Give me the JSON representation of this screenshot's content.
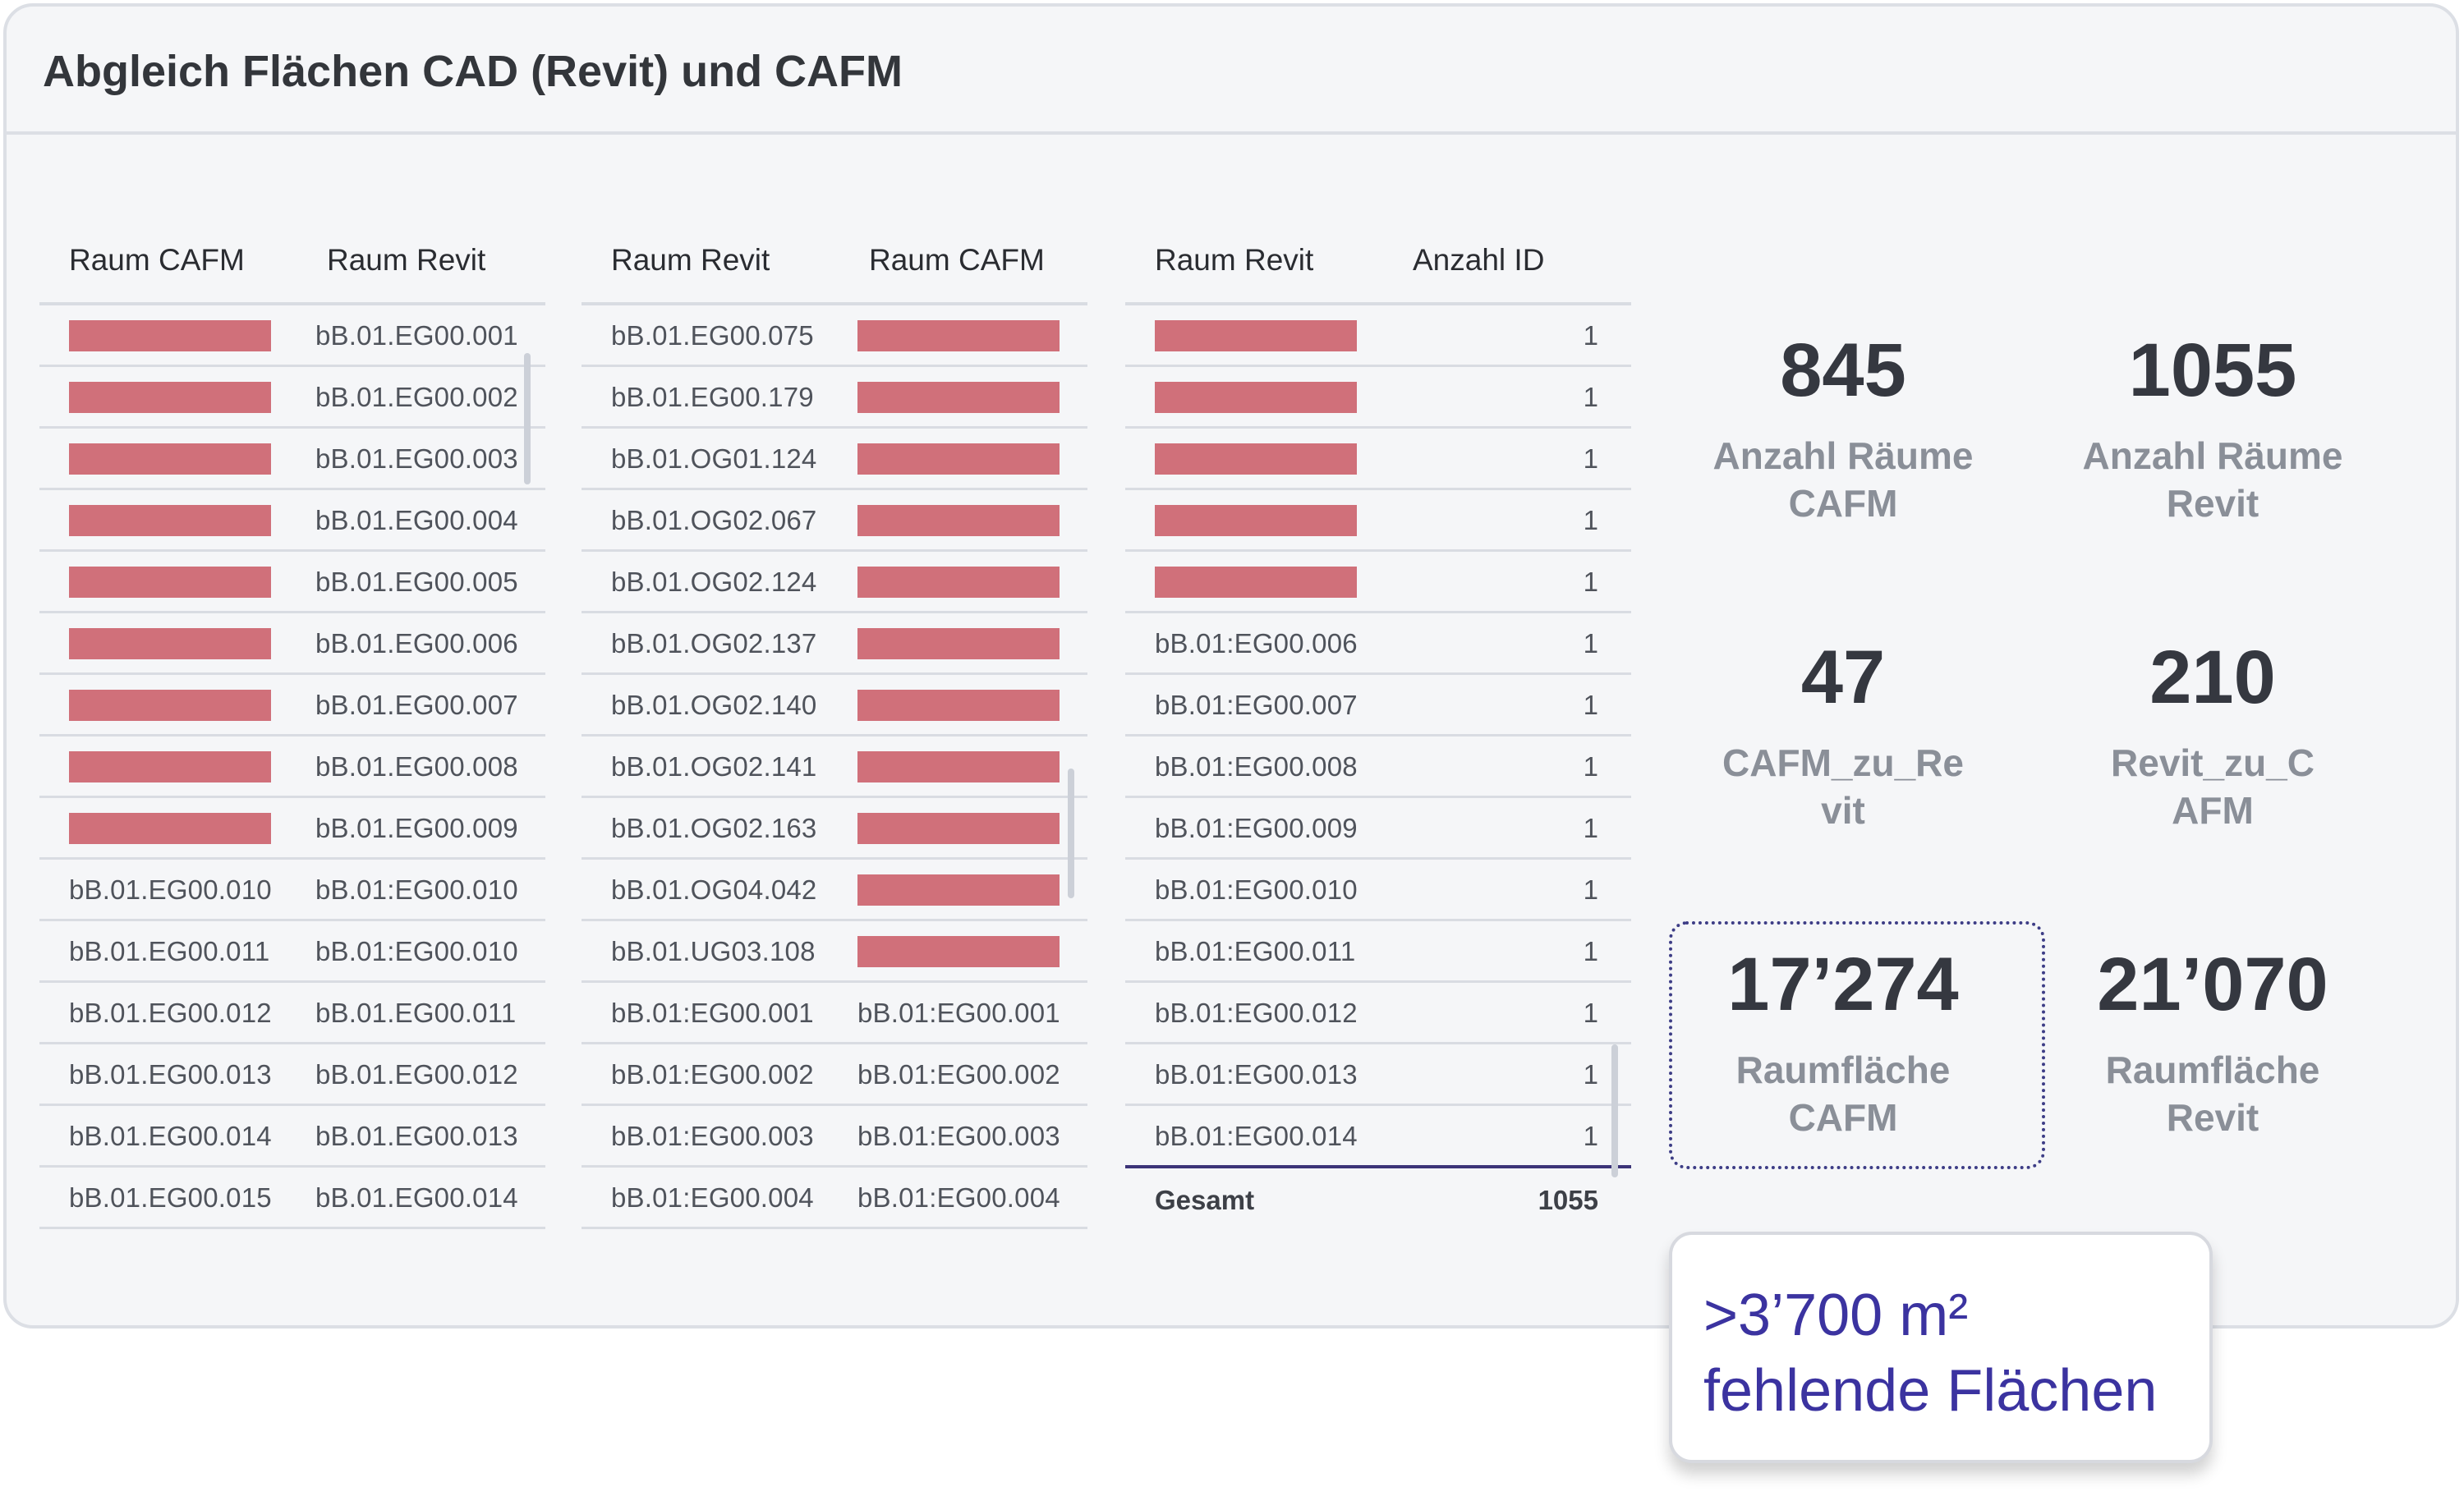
{
  "title": "Abgleich Flächen CAD (Revit) und CAFM",
  "colors": {
    "redacted": "#d0707a",
    "accent": "#3b33a0",
    "panel": "#f5f6f8"
  },
  "table1": {
    "headers": [
      "Raum CAFM",
      "Raum Revit"
    ],
    "rows": [
      [
        "",
        "bB.01.EG00.001"
      ],
      [
        "",
        "bB.01.EG00.002"
      ],
      [
        "",
        "bB.01.EG00.003"
      ],
      [
        "",
        "bB.01.EG00.004"
      ],
      [
        "",
        "bB.01.EG00.005"
      ],
      [
        "",
        "bB.01.EG00.006"
      ],
      [
        "",
        "bB.01.EG00.007"
      ],
      [
        "",
        "bB.01.EG00.008"
      ],
      [
        "",
        "bB.01.EG00.009"
      ],
      [
        "bB.01.EG00.010",
        "bB.01:EG00.010"
      ],
      [
        "bB.01.EG00.011",
        "bB.01:EG00.010"
      ],
      [
        "bB.01.EG00.012",
        "bB.01.EG00.011"
      ],
      [
        "bB.01.EG00.013",
        "bB.01.EG00.012"
      ],
      [
        "bB.01.EG00.014",
        "bB.01.EG00.013"
      ],
      [
        "bB.01.EG00.015",
        "bB.01.EG00.014"
      ]
    ]
  },
  "table2": {
    "headers": [
      "Raum Revit",
      "Raum CAFM"
    ],
    "rows": [
      [
        "bB.01.EG00.075",
        ""
      ],
      [
        "bB.01.EG00.179",
        ""
      ],
      [
        "bB.01.OG01.124",
        ""
      ],
      [
        "bB.01.OG02.067",
        ""
      ],
      [
        "bB.01.OG02.124",
        ""
      ],
      [
        "bB.01.OG02.137",
        ""
      ],
      [
        "bB.01.OG02.140",
        ""
      ],
      [
        "bB.01.OG02.141",
        ""
      ],
      [
        "bB.01.OG02.163",
        ""
      ],
      [
        "bB.01.OG04.042",
        ""
      ],
      [
        "bB.01.UG03.108",
        ""
      ],
      [
        "bB.01:EG00.001",
        "bB.01:EG00.001"
      ],
      [
        "bB.01:EG00.002",
        "bB.01:EG00.002"
      ],
      [
        "bB.01:EG00.003",
        "bB.01:EG00.003"
      ],
      [
        "bB.01:EG00.004",
        "bB.01:EG00.004"
      ]
    ]
  },
  "table3": {
    "headers": [
      "Raum Revit",
      "Anzahl ID"
    ],
    "rows": [
      [
        "",
        "1"
      ],
      [
        "",
        "1"
      ],
      [
        "",
        "1"
      ],
      [
        "",
        "1"
      ],
      [
        "",
        "1"
      ],
      [
        "bB.01:EG00.006",
        "1"
      ],
      [
        "bB.01:EG00.007",
        "1"
      ],
      [
        "bB.01:EG00.008",
        "1"
      ],
      [
        "bB.01:EG00.009",
        "1"
      ],
      [
        "bB.01:EG00.010",
        "1"
      ],
      [
        "bB.01:EG00.011",
        "1"
      ],
      [
        "bB.01:EG00.012",
        "1"
      ],
      [
        "bB.01:EG00.013",
        "1"
      ],
      [
        "bB.01:EG00.014",
        "1"
      ]
    ],
    "total_label": "Gesamt",
    "total_value": "1055"
  },
  "kpis": [
    {
      "value": "845",
      "label": "Anzahl Räume\nCAFM"
    },
    {
      "value": "1055",
      "label": "Anzahl Räume\nRevit"
    },
    {
      "value": "47",
      "label": "CAFM_zu_Re\nvit"
    },
    {
      "value": "210",
      "label": "Revit_zu_C\nAFM"
    },
    {
      "value": "17’274",
      "label": "Raumfläche\nCAFM"
    },
    {
      "value": "21’070",
      "label": "Raumfläche\nRevit"
    }
  ],
  "callout": {
    "text": ">3’700 m²\nfehlende Flächen"
  }
}
